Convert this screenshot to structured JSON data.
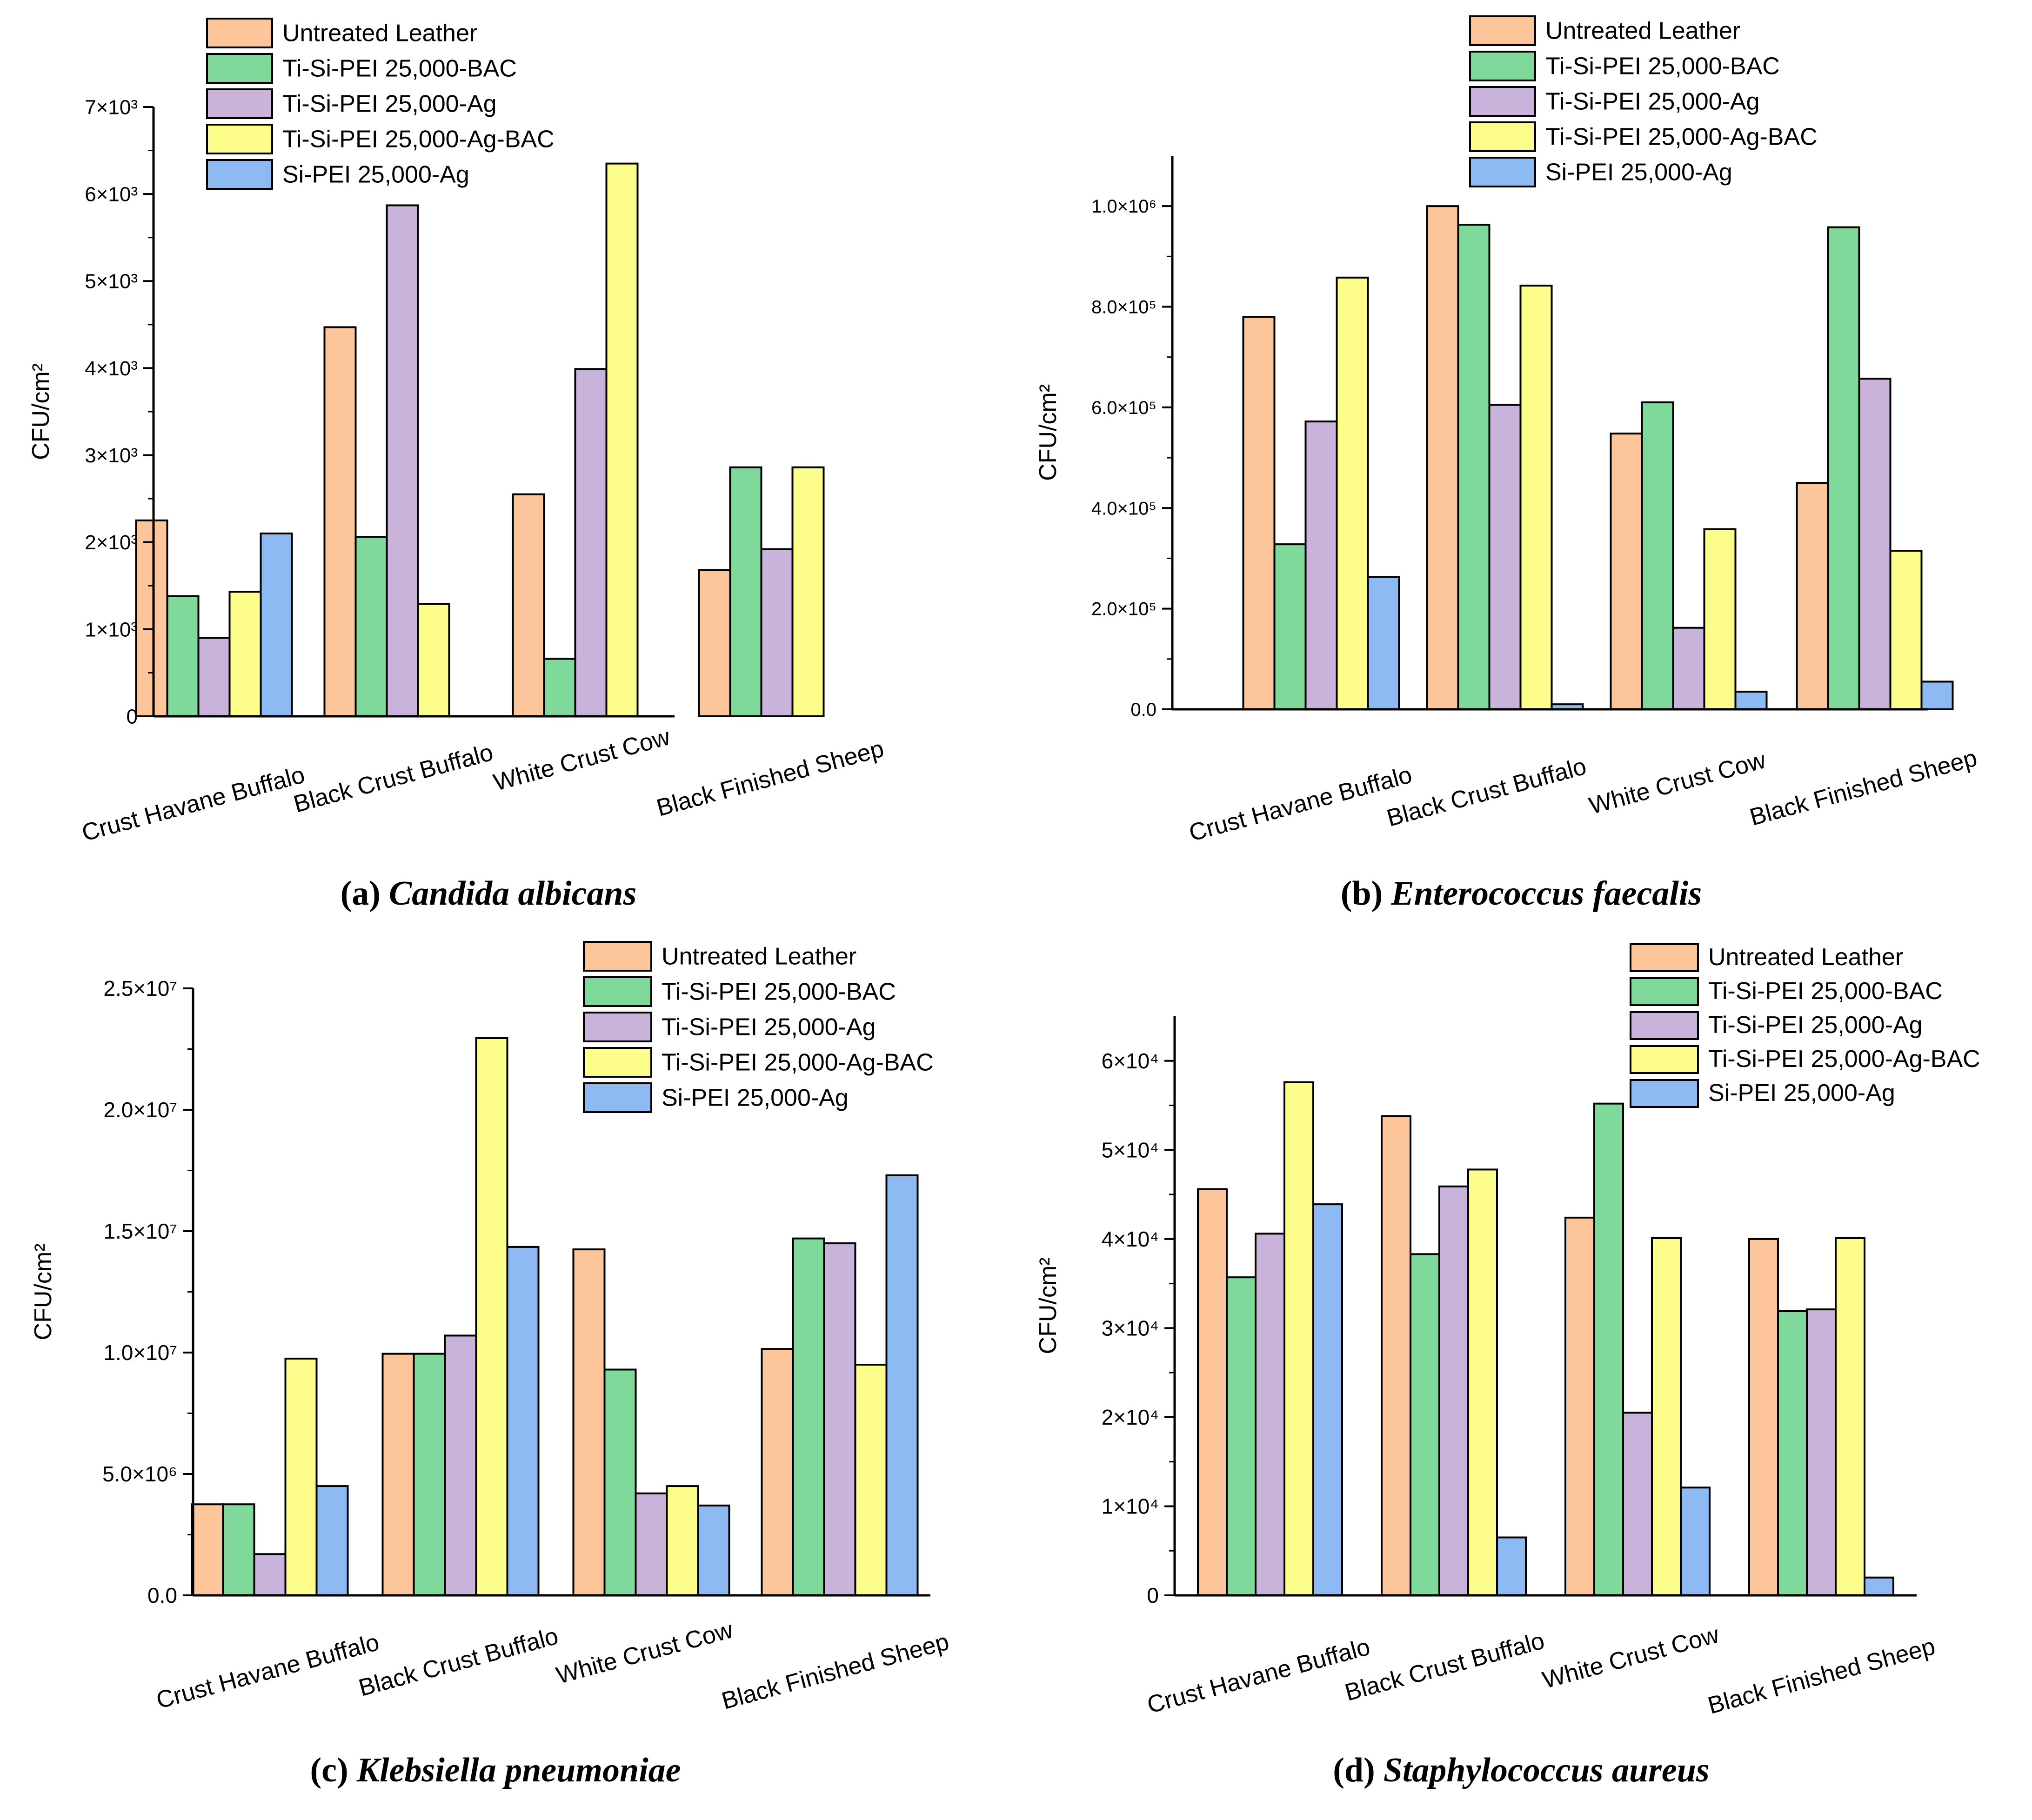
{
  "colors": {
    "Untreated Leather": "#fdc69a",
    "Ti-Si-PEI 25,000-BAC": "#7fd99a",
    "Ti-Si-PEI 25,000-Ag": "#c9b3db",
    "Ti-Si-PEI 25,000-Ag-BAC": "#fdfd8c",
    "Si-PEI 25,000-Ag": "#8dbaf2"
  },
  "chart_data": [
    {
      "type": "bar",
      "caption_label": "(a)",
      "caption_species": "Candida albicans",
      "ylabel": "CFU/cm²",
      "ylim": [
        0,
        7000
      ],
      "yticks": [
        "0",
        "1×10³",
        "2×10³",
        "3×10³",
        "4×10³",
        "5×10³",
        "6×10³",
        "7×10³"
      ],
      "categories": [
        "Crust Havane Buffalo",
        "Black Crust Buffalo",
        "White Crust Cow",
        "Black Finished Sheep"
      ],
      "series": [
        {
          "name": "Untreated Leather",
          "values": [
            2250,
            4470,
            2550,
            1680
          ]
        },
        {
          "name": "Ti-Si-PEI 25,000-BAC",
          "values": [
            1380,
            2060,
            660,
            2860
          ]
        },
        {
          "name": "Ti-Si-PEI 25,000-Ag",
          "values": [
            900,
            5870,
            3990,
            1920
          ]
        },
        {
          "name": "Ti-Si-PEI 25,000-Ag-BAC",
          "values": [
            1430,
            1290,
            6350,
            2860
          ]
        },
        {
          "name": "Si-PEI 25,000-Ag",
          "values": [
            2100,
            0,
            0,
            0
          ]
        }
      ]
    },
    {
      "type": "bar",
      "caption_label": "(b)",
      "caption_species": "Enterococcus faecalis",
      "ylabel": "CFU/cm²",
      "ylim": [
        0,
        1100000
      ],
      "yticks": [
        "0.0",
        "2.0×10⁵",
        "4.0×10⁵",
        "6.0×10⁵",
        "8.0×10⁵",
        "1.0×10⁶"
      ],
      "categories": [
        "Crust Havane Buffalo",
        "Black Crust Buffalo",
        "White Crust Cow",
        "Black Finished Sheep"
      ],
      "series": [
        {
          "name": "Untreated Leather",
          "values": [
            780000,
            1000000,
            548000,
            450000
          ]
        },
        {
          "name": "Ti-Si-PEI 25,000-BAC",
          "values": [
            328000,
            963000,
            610000,
            958000
          ]
        },
        {
          "name": "Ti-Si-PEI 25,000-Ag",
          "values": [
            572000,
            605000,
            162000,
            657000
          ]
        },
        {
          "name": "Ti-Si-PEI 25,000-Ag-BAC",
          "values": [
            858000,
            842000,
            358000,
            315000
          ]
        },
        {
          "name": "Si-PEI 25,000-Ag",
          "values": [
            263000,
            10000,
            35000,
            55000
          ]
        }
      ]
    },
    {
      "type": "bar",
      "caption_label": "(c)",
      "caption_species": "Klebsiella pneumoniae",
      "ylabel": "CFU/cm²",
      "ylim": [
        0,
        25000000
      ],
      "yticks": [
        "0.0",
        "5.0×10⁶",
        "1.0×10⁷",
        "1.5×10⁷",
        "2.0×10⁷",
        "2.5×10⁷"
      ],
      "categories": [
        "Crust Havane Buffalo",
        "Black Crust Buffalo",
        "White Crust Cow",
        "Black Finished Sheep"
      ],
      "series": [
        {
          "name": "Untreated Leather",
          "values": [
            3750000,
            9950000,
            14250000,
            10150000
          ]
        },
        {
          "name": "Ti-Si-PEI 25,000-BAC",
          "values": [
            3750000,
            9950000,
            9300000,
            14700000
          ]
        },
        {
          "name": "Ti-Si-PEI 25,000-Ag",
          "values": [
            1700000,
            10700000,
            4200000,
            14500000
          ]
        },
        {
          "name": "Ti-Si-PEI 25,000-Ag-BAC",
          "values": [
            9750000,
            22950000,
            4500000,
            9500000
          ]
        },
        {
          "name": "Si-PEI 25,000-Ag",
          "values": [
            4500000,
            14350000,
            3700000,
            17300000
          ]
        }
      ]
    },
    {
      "type": "bar",
      "caption_label": "(d)",
      "caption_species": "Staphylococcus aureus",
      "ylabel": "CFU/cm²",
      "ylim": [
        0,
        65000
      ],
      "yticks": [
        "0",
        "1×10⁴",
        "2×10⁴",
        "3×10⁴",
        "4×10⁴",
        "5×10⁴",
        "6×10⁴"
      ],
      "categories": [
        "Crust Havane Buffalo",
        "Black Crust Buffalo",
        "White Crust Cow",
        "Black Finished Sheep"
      ],
      "series": [
        {
          "name": "Untreated Leather",
          "values": [
            45600,
            53800,
            42400,
            40000
          ]
        },
        {
          "name": "Ti-Si-PEI 25,000-BAC",
          "values": [
            35700,
            38300,
            55200,
            31900
          ]
        },
        {
          "name": "Ti-Si-PEI 25,000-Ag",
          "values": [
            40600,
            45900,
            20500,
            32100
          ]
        },
        {
          "name": "Ti-Si-PEI 25,000-Ag-BAC",
          "values": [
            57600,
            47800,
            40100,
            40100
          ]
        },
        {
          "name": "Si-PEI 25,000-Ag",
          "values": [
            43900,
            6500,
            12100,
            2000
          ]
        }
      ]
    }
  ]
}
